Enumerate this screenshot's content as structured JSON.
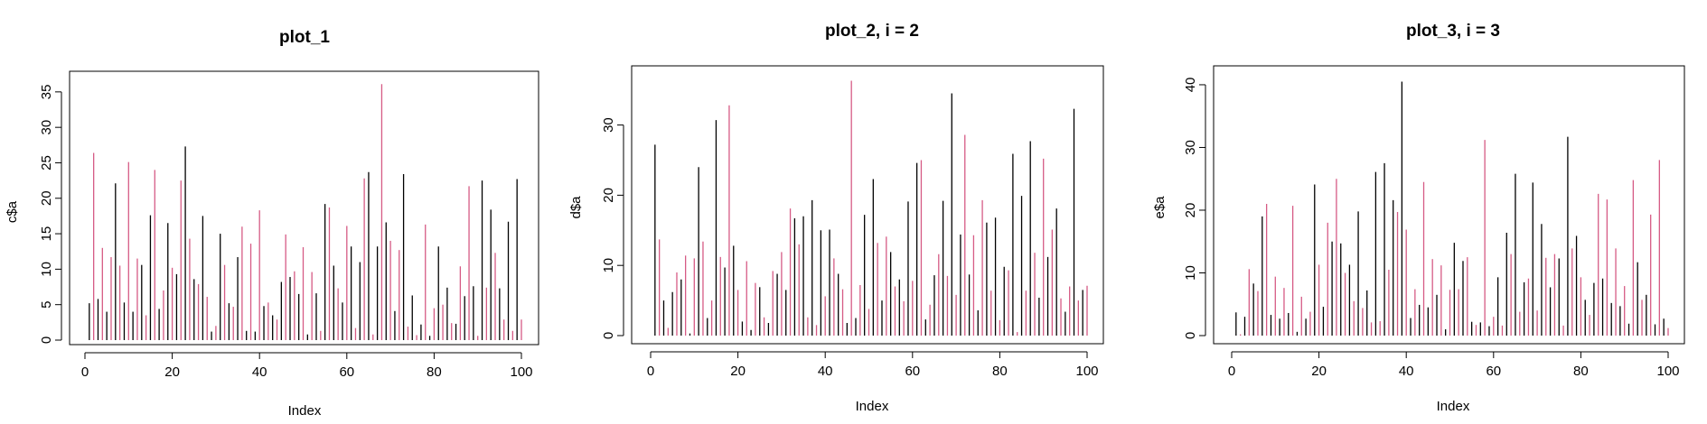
{
  "colors": {
    "c1": "#000000",
    "c2": "#d65b85"
  },
  "chart_data": [
    {
      "type": "bar",
      "title": "plot_1",
      "xlabel": "Index",
      "ylabel": "c$a",
      "xlim": [
        0,
        100
      ],
      "ylim": [
        0,
        36
      ],
      "xticks": [
        0,
        20,
        40,
        60,
        80,
        100
      ],
      "yticks": [
        0,
        5,
        10,
        15,
        20,
        25,
        30,
        35
      ],
      "values": [
        5.2,
        26.4,
        5.8,
        13,
        4,
        11.7,
        22.1,
        10.5,
        5.3,
        25.1,
        4,
        11.5,
        10.6,
        3.5,
        17.6,
        24,
        4.4,
        7,
        16.5,
        10.2,
        9.3,
        22.5,
        27.3,
        14.3,
        8.6,
        7.9,
        17.5,
        6.1,
        1.2,
        2,
        15,
        10.6,
        5.2,
        4.7,
        11.7,
        16,
        1.3,
        13.6,
        1.2,
        18.3,
        4.8,
        5.3,
        3.5,
        2.9,
        8.2,
        14.9,
        8.9,
        9.7,
        6.5,
        13.1,
        0.8,
        9.6,
        6.6,
        1.3,
        19.2,
        18.7,
        10.5,
        7.3,
        5.3,
        16.1,
        13.2,
        1.7,
        11,
        22.8,
        23.7,
        0.8,
        13.2,
        36.1,
        16.6,
        14,
        4.1,
        12.7,
        23.4,
        1.9,
        6.3,
        0.7,
        2.2,
        16.3,
        0.6,
        4.5,
        13.2,
        5,
        7.4,
        2.4,
        2.3,
        10.4,
        6.2,
        21.7,
        7.6,
        0.6,
        22.5,
        7.4,
        18.4,
        12.3,
        7.3,
        2.9,
        16.7,
        1.3,
        22.7,
        2.9
      ]
    },
    {
      "type": "bar",
      "title": "plot_2, i = 2",
      "xlabel": "Index",
      "ylabel": "d$a",
      "xlim": [
        0,
        100
      ],
      "ylim": [
        0,
        36.5
      ],
      "xticks": [
        0,
        20,
        40,
        60,
        80,
        100
      ],
      "yticks": [
        0,
        10,
        20,
        30
      ],
      "values": [
        27.2,
        13.7,
        5,
        1.1,
        6.2,
        9,
        8,
        11.4,
        0.3,
        11,
        24,
        13.4,
        2.5,
        5,
        30.7,
        11.2,
        9.7,
        32.8,
        12.8,
        6.5,
        2,
        10.6,
        0.8,
        7.5,
        6.9,
        2.6,
        1.8,
        9.2,
        8.8,
        11.9,
        6.5,
        18.1,
        16.7,
        13,
        17,
        2.6,
        19.3,
        1.5,
        15,
        5.6,
        15.1,
        11,
        8.8,
        6.6,
        1.8,
        36.3,
        2.5,
        7.2,
        17.2,
        3.8,
        22.3,
        13.2,
        5,
        14.1,
        11.9,
        7,
        8,
        4.9,
        19.1,
        7.8,
        24.6,
        25,
        2.3,
        4.4,
        8.6,
        11.6,
        19.2,
        8.5,
        34.5,
        5.8,
        14.4,
        28.6,
        8.7,
        14.3,
        3.6,
        19.3,
        16.1,
        6.4,
        16.8,
        2.2,
        9.8,
        9.3,
        25.9,
        0.5,
        19.9,
        6.4,
        27.7,
        11.8,
        5.4,
        25.2,
        11.2,
        15.1,
        18.1,
        5.3,
        3.4,
        7,
        32.3,
        5,
        6.5,
        7.1
      ]
    },
    {
      "type": "bar",
      "title": "plot_3, i = 3",
      "xlabel": "Index",
      "ylabel": "e$a",
      "xlim": [
        0,
        100
      ],
      "ylim": [
        0,
        41
      ],
      "xticks": [
        0,
        20,
        40,
        60,
        80,
        100
      ],
      "yticks": [
        0,
        10,
        20,
        30,
        40
      ],
      "values": [
        3.7,
        0.2,
        3,
        10.6,
        8.3,
        7.1,
        19,
        21,
        3.3,
        9.4,
        2.7,
        7.6,
        3.6,
        20.7,
        0.6,
        6.2,
        2.7,
        3.8,
        24.1,
        11.3,
        4.6,
        18,
        15,
        25,
        14.7,
        10,
        11.3,
        5.5,
        19.8,
        4.4,
        7.2,
        2.1,
        26.1,
        2.3,
        27.5,
        10.5,
        21.6,
        19.7,
        40.5,
        16.9,
        2.8,
        7.4,
        4.9,
        24.5,
        4.5,
        12.2,
        6.5,
        11.2,
        1,
        7.3,
        14.8,
        7.4,
        11.9,
        12.5,
        2.2,
        1.7,
        2.1,
        31.2,
        1.5,
        3,
        9.3,
        1.6,
        16.4,
        13,
        25.8,
        3.8,
        8.5,
        9.1,
        24.4,
        4,
        17.8,
        12.4,
        7.7,
        13,
        12.3,
        1.6,
        31.7,
        13.9,
        15.9,
        9.3,
        5.7,
        3.3,
        8.4,
        22.6,
        9.1,
        21.7,
        5.2,
        13.9,
        4.7,
        7.9,
        1.9,
        24.8,
        11.7,
        5.7,
        6.5,
        19.3,
        1.8,
        28,
        2.7,
        1.2
      ]
    }
  ]
}
